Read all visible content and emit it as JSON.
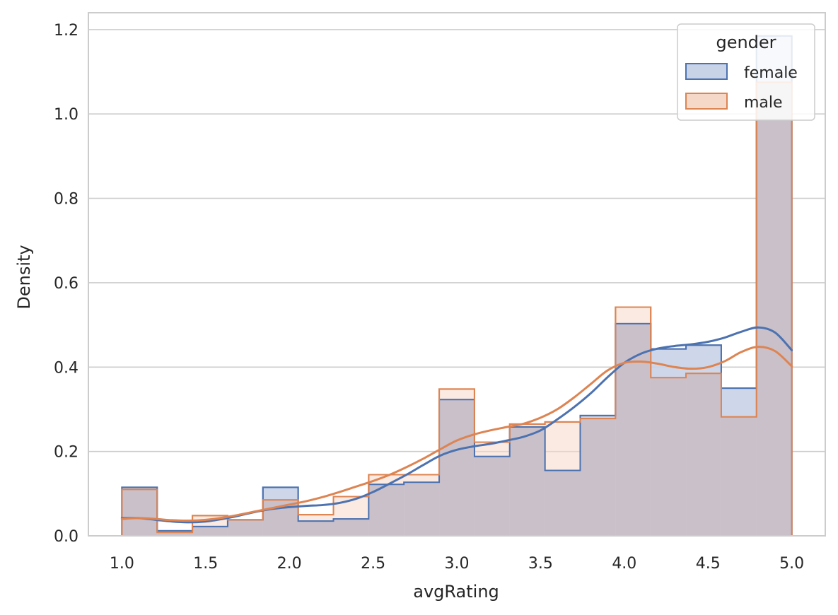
{
  "chart_data": {
    "type": "histogram",
    "xlabel": "avgRating",
    "ylabel": "Density",
    "xlim": [
      0.8,
      5.2
    ],
    "ylim": [
      0,
      1.24
    ],
    "x_ticks": [
      "1.0",
      "1.5",
      "2.0",
      "2.5",
      "3.0",
      "3.5",
      "4.0",
      "4.5",
      "5.0"
    ],
    "y_ticks": [
      "0.0",
      "0.2",
      "0.4",
      "0.6",
      "0.8",
      "1.0",
      "1.2"
    ],
    "grid": true,
    "legend_title": "gender",
    "legend_position": "top-right",
    "bin_edges": [
      1.0,
      1.2105,
      1.4211,
      1.6316,
      1.8421,
      2.0526,
      2.2632,
      2.4737,
      2.6842,
      2.8947,
      3.1053,
      3.3158,
      3.5263,
      3.7368,
      3.9474,
      4.1579,
      4.3684,
      4.5789,
      4.7895,
      5.0
    ],
    "series": [
      {
        "name": "female",
        "color": "#4c72b0",
        "fill": "#c9d3e7",
        "values": [
          0.115,
          0.012,
          0.022,
          0.038,
          0.115,
          0.035,
          0.04,
          0.122,
          0.127,
          0.323,
          0.188,
          0.258,
          0.155,
          0.285,
          0.503,
          0.443,
          0.452,
          0.35,
          1.185
        ],
        "kde_x": [
          1.0,
          1.1,
          1.2,
          1.3,
          1.4,
          1.5,
          1.6,
          1.7,
          1.8,
          1.9,
          2.0,
          2.1,
          2.2,
          2.3,
          2.4,
          2.5,
          2.6,
          2.7,
          2.8,
          2.9,
          3.0,
          3.1,
          3.2,
          3.3,
          3.4,
          3.5,
          3.6,
          3.7,
          3.8,
          3.9,
          4.0,
          4.1,
          4.2,
          4.3,
          4.4,
          4.5,
          4.6,
          4.7,
          4.8,
          4.9,
          5.0
        ],
        "kde_y": [
          0.042,
          0.042,
          0.038,
          0.034,
          0.032,
          0.034,
          0.04,
          0.048,
          0.057,
          0.064,
          0.068,
          0.071,
          0.073,
          0.078,
          0.088,
          0.104,
          0.124,
          0.145,
          0.168,
          0.19,
          0.204,
          0.212,
          0.218,
          0.226,
          0.235,
          0.25,
          0.276,
          0.305,
          0.338,
          0.376,
          0.41,
          0.432,
          0.444,
          0.45,
          0.454,
          0.46,
          0.47,
          0.484,
          0.494,
          0.482,
          0.44
        ]
      },
      {
        "name": "male",
        "color": "#dd8452",
        "fill": "#f5d8c8",
        "values": [
          0.11,
          0.008,
          0.048,
          0.038,
          0.085,
          0.05,
          0.093,
          0.145,
          0.145,
          0.348,
          0.222,
          0.265,
          0.27,
          0.278,
          0.542,
          0.375,
          0.385,
          0.282,
          1.075
        ],
        "kde_x": [
          1.0,
          1.1,
          1.2,
          1.3,
          1.4,
          1.5,
          1.6,
          1.7,
          1.8,
          1.9,
          2.0,
          2.1,
          2.2,
          2.3,
          2.4,
          2.5,
          2.6,
          2.7,
          2.8,
          2.9,
          3.0,
          3.1,
          3.2,
          3.3,
          3.4,
          3.5,
          3.6,
          3.7,
          3.8,
          3.9,
          4.0,
          4.1,
          4.2,
          4.3,
          4.4,
          4.5,
          4.6,
          4.7,
          4.8,
          4.9,
          5.0
        ],
        "kde_y": [
          0.04,
          0.042,
          0.04,
          0.037,
          0.036,
          0.038,
          0.043,
          0.05,
          0.058,
          0.066,
          0.074,
          0.082,
          0.092,
          0.104,
          0.117,
          0.13,
          0.145,
          0.163,
          0.183,
          0.205,
          0.226,
          0.24,
          0.25,
          0.258,
          0.266,
          0.28,
          0.3,
          0.328,
          0.36,
          0.392,
          0.41,
          0.413,
          0.408,
          0.4,
          0.396,
          0.4,
          0.414,
          0.436,
          0.448,
          0.438,
          0.402
        ]
      }
    ]
  }
}
